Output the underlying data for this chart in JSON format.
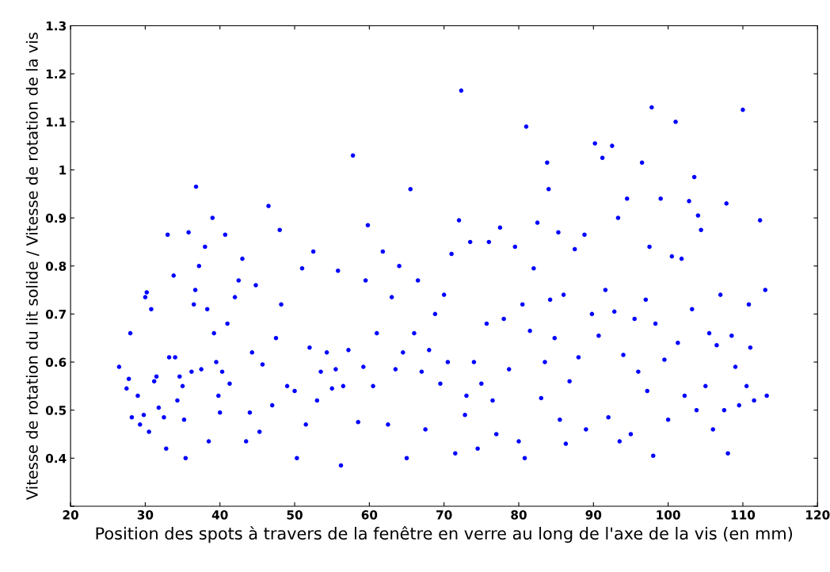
{
  "chart_data": {
    "type": "scatter",
    "xlabel": "Position des spots à travers de la fenêtre en verre au long de l'axe de la vis (en mm)",
    "ylabel": "Vitesse de rotation du lit solide / Vitesse de rotation de la vis",
    "xlim": [
      20,
      120
    ],
    "xticks": [
      20,
      30,
      40,
      50,
      60,
      70,
      80,
      90,
      100,
      110,
      120
    ],
    "ylim": [
      0.3,
      1.3
    ],
    "yticks": [
      {
        "value": 0.3,
        "label": null
      },
      0.4,
      0.5,
      0.6,
      0.7,
      0.8,
      0.9,
      1,
      1.1,
      1.2,
      1.3
    ],
    "grid": false,
    "marker": "circle",
    "series": [
      {
        "color": "#0000ff",
        "x": [
          26.5,
          27.5,
          27.8,
          28,
          28.2,
          29,
          29.3,
          29.8,
          30,
          30.2,
          30.5,
          30.8,
          31.2,
          31.5,
          31.8,
          32.5,
          32.8,
          33,
          33.2,
          33.8,
          34,
          34.3,
          34.6,
          35,
          35.2,
          35.4,
          35.8,
          36.2,
          36.5,
          36.7,
          36.8,
          37.2,
          37.5,
          38,
          38.3,
          38.5,
          39,
          39.2,
          39.5,
          39.8,
          40,
          40.3,
          40.7,
          41,
          41.3,
          42,
          42.5,
          43,
          43.5,
          44,
          44.3,
          44.8,
          45.3,
          45.7,
          46.5,
          47,
          47.5,
          48,
          48.2,
          49,
          50,
          50.3,
          51,
          51.5,
          52,
          52.5,
          53,
          53.5,
          54.3,
          55,
          55.5,
          55.8,
          56.2,
          56.5,
          57.2,
          57.8,
          58.5,
          59.2,
          59.5,
          59.8,
          60.5,
          61,
          61.8,
          62.5,
          63,
          63.5,
          64,
          64.5,
          65,
          65.5,
          66,
          66.5,
          67,
          67.5,
          68,
          68.8,
          69.5,
          70,
          70.5,
          71,
          71.5,
          72,
          72.3,
          72.8,
          73,
          73.5,
          74,
          74.5,
          75,
          75.7,
          76,
          76.5,
          77,
          77.5,
          78,
          78.7,
          79.5,
          80,
          80.5,
          80.8,
          81,
          81.5,
          82,
          82.5,
          83,
          83.5,
          83.8,
          84,
          84.2,
          84.8,
          85.3,
          85.5,
          86,
          86.3,
          86.8,
          87.5,
          88,
          88.8,
          89,
          89.8,
          90.2,
          90.7,
          91.2,
          91.6,
          92,
          92.5,
          92.8,
          93.3,
          93.5,
          94,
          94.5,
          95,
          95.5,
          96,
          96.5,
          97,
          97.2,
          97.5,
          97.8,
          98,
          98.3,
          99,
          99.5,
          100,
          100.5,
          101,
          101.3,
          101.8,
          102.2,
          102.8,
          103.2,
          103.5,
          103.8,
          104,
          104.4,
          105,
          105.5,
          106,
          106.5,
          107,
          107.5,
          107.8,
          108,
          108.5,
          109,
          109.5,
          110,
          110.5,
          110.8,
          111,
          111.5,
          112.3,
          113,
          113.2
        ],
        "values": [
          0.59,
          0.545,
          0.565,
          0.66,
          0.485,
          0.53,
          0.47,
          0.49,
          0.735,
          0.745,
          0.455,
          0.71,
          0.56,
          0.57,
          0.505,
          0.485,
          0.42,
          0.865,
          0.61,
          0.78,
          0.61,
          0.52,
          0.57,
          0.55,
          0.48,
          0.4,
          0.87,
          0.58,
          0.72,
          0.75,
          0.965,
          0.8,
          0.585,
          0.84,
          0.71,
          0.435,
          0.9,
          0.66,
          0.6,
          0.53,
          0.495,
          0.58,
          0.865,
          0.68,
          0.555,
          0.735,
          0.77,
          0.815,
          0.435,
          0.495,
          0.62,
          0.76,
          0.455,
          0.595,
          0.925,
          0.51,
          0.65,
          0.875,
          0.72,
          0.55,
          0.54,
          0.4,
          0.795,
          0.47,
          0.63,
          0.83,
          0.52,
          0.58,
          0.62,
          0.545,
          0.585,
          0.79,
          0.385,
          0.55,
          0.625,
          1.03,
          0.475,
          0.59,
          0.77,
          0.885,
          0.55,
          0.66,
          0.83,
          0.47,
          0.735,
          0.585,
          0.8,
          0.62,
          0.4,
          0.96,
          0.66,
          0.77,
          0.58,
          0.46,
          0.625,
          0.7,
          0.555,
          0.74,
          0.6,
          0.825,
          0.41,
          0.895,
          1.165,
          0.49,
          0.53,
          0.85,
          0.6,
          0.42,
          0.555,
          0.68,
          0.85,
          0.52,
          0.45,
          0.88,
          0.69,
          0.585,
          0.84,
          0.435,
          0.72,
          0.4,
          1.09,
          0.665,
          0.795,
          0.89,
          0.525,
          0.6,
          1.015,
          0.96,
          0.73,
          0.65,
          0.87,
          0.48,
          0.74,
          0.43,
          0.56,
          0.835,
          0.61,
          0.865,
          0.46,
          0.7,
          1.055,
          0.655,
          1.025,
          0.75,
          0.485,
          1.05,
          0.705,
          0.9,
          0.435,
          0.615,
          0.94,
          0.45,
          0.69,
          0.58,
          1.015,
          0.73,
          0.54,
          0.84,
          1.13,
          0.405,
          0.68,
          0.94,
          0.605,
          0.48,
          0.82,
          1.1,
          0.64,
          0.815,
          0.53,
          0.935,
          0.71,
          0.985,
          0.5,
          0.905,
          0.875,
          0.55,
          0.66,
          0.46,
          0.635,
          0.74,
          0.5,
          0.93,
          0.41,
          0.655,
          0.59,
          0.51,
          1.125,
          0.55,
          0.72,
          0.63,
          0.52,
          0.895,
          0.75,
          0.53
        ]
      }
    ]
  }
}
